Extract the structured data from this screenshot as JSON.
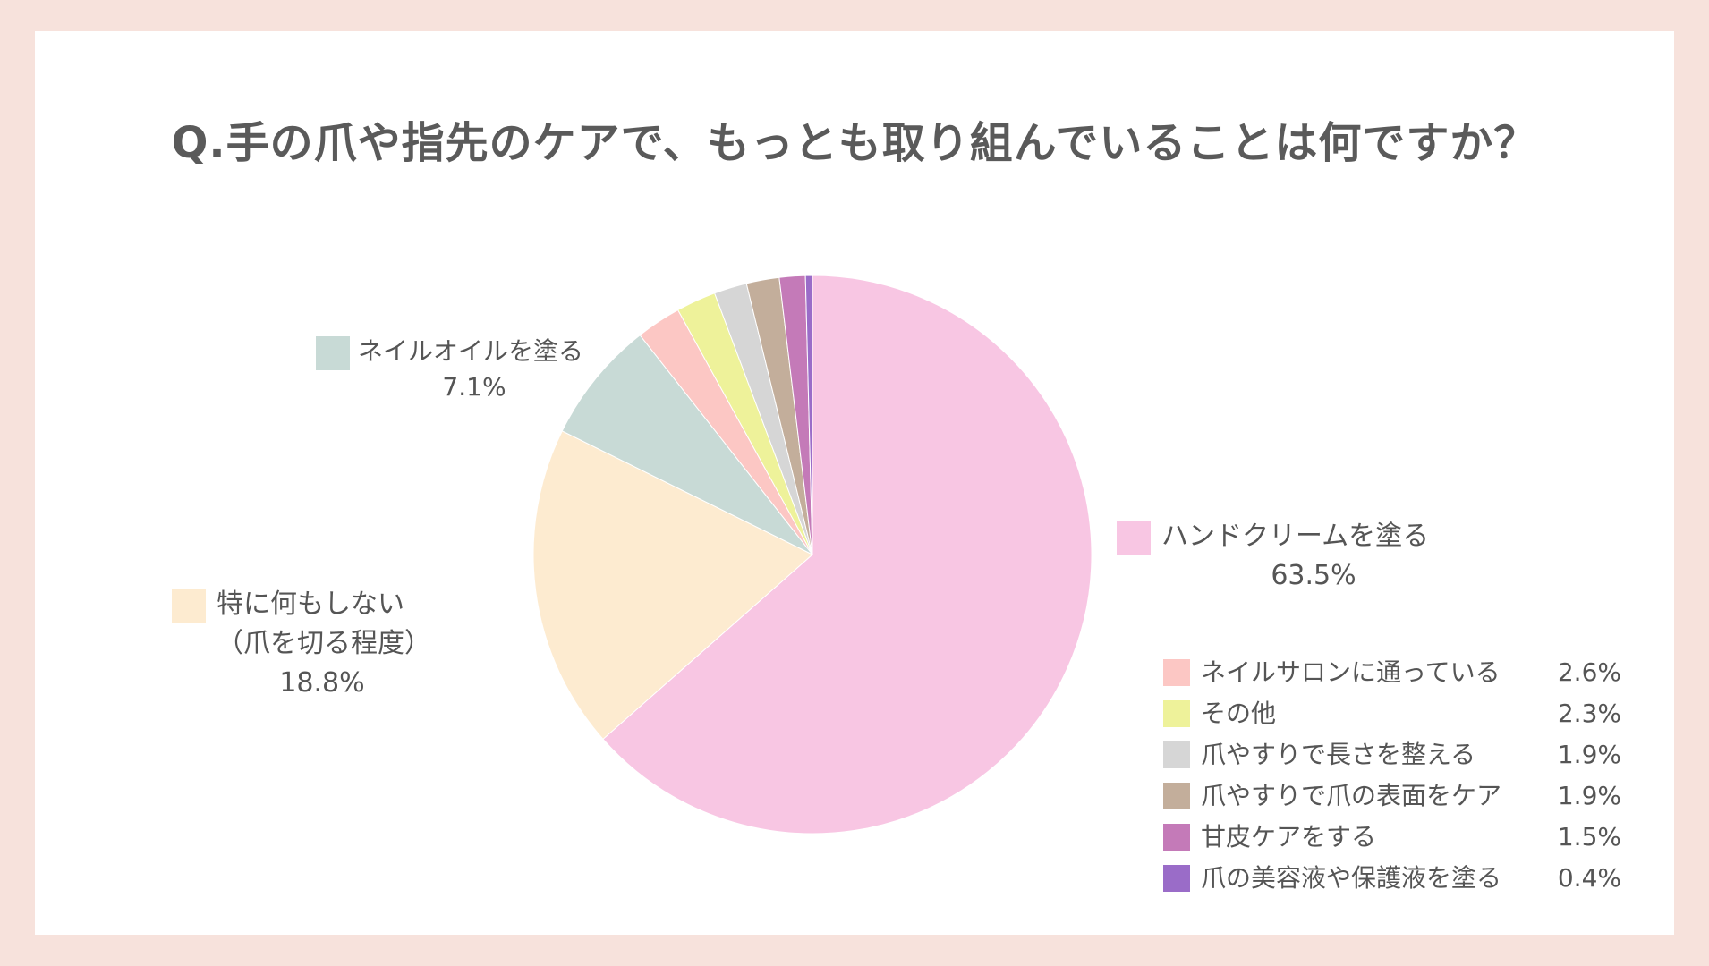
{
  "title": "Q.手の爪や指先のケアで、もっとも取り組んでいることは何ですか？",
  "chart_data": {
    "type": "pie",
    "title": "Q.手の爪や指先のケアで、もっとも取り組んでいることは何ですか？",
    "start_angle_deg": 0,
    "direction": "clockwise",
    "slices": [
      {
        "label": "ハンドクリームを塗る",
        "value": 63.5,
        "value_label": "63.5%",
        "color": "#f8c6e3"
      },
      {
        "label": "特に何もしない（爪を切る程度）",
        "value": 18.8,
        "value_label": "18.8%",
        "color": "#fdebd0"
      },
      {
        "label": "ネイルオイルを塗る",
        "value": 7.1,
        "value_label": "7.1%",
        "color": "#c8dad6"
      },
      {
        "label": "ネイルサロンに通っている",
        "value": 2.6,
        "value_label": "2.6%",
        "color": "#fcc7c4"
      },
      {
        "label": "その他",
        "value": 2.3,
        "value_label": "2.3%",
        "color": "#eef29a"
      },
      {
        "label": "爪やすりで長さを整える",
        "value": 1.9,
        "value_label": "1.9%",
        "color": "#d6d6d6"
      },
      {
        "label": "爪やすりで爪の表面をケア",
        "value": 1.9,
        "value_label": "1.9%",
        "color": "#c3ae9b"
      },
      {
        "label": "甘皮ケアをする",
        "value": 1.5,
        "value_label": "1.5%",
        "color": "#c47ab8"
      },
      {
        "label": "爪の美容液や保護液を塗る",
        "value": 0.4,
        "value_label": "0.4%",
        "color": "#9a6cc8"
      }
    ]
  },
  "callouts": {
    "hand_cream": {
      "label": "ハンドクリームを塗る",
      "value": "63.5%"
    },
    "nothing": {
      "label_line1": "特に何もしない",
      "label_line2": "（爪を切る程度）",
      "value": "18.8%"
    },
    "nail_oil": {
      "label": "ネイルオイルを塗る",
      "value": "7.1%"
    }
  },
  "legend": [
    {
      "label": "ネイルサロンに通っている",
      "value": "2.6%",
      "color": "#fcc7c4"
    },
    {
      "label": "その他",
      "value": "2.3%",
      "color": "#eef29a"
    },
    {
      "label": "爪やすりで長さを整える",
      "value": "1.9%",
      "color": "#d6d6d6"
    },
    {
      "label": "爪やすりで爪の表面をケア",
      "value": "1.9%",
      "color": "#c3ae9b"
    },
    {
      "label": "甘皮ケアをする",
      "value": "1.5%",
      "color": "#c47ab8"
    },
    {
      "label": "爪の美容液や保護液を塗る",
      "value": "0.4%",
      "color": "#9a6cc8"
    }
  ]
}
